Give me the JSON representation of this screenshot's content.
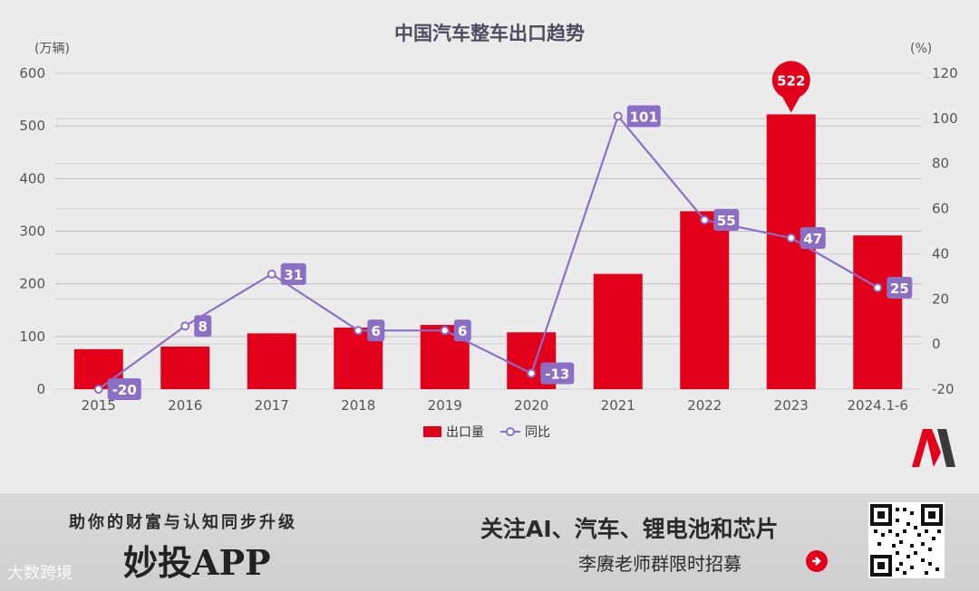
{
  "chart_data": {
    "type": "bar+line",
    "title": "中国汽车整车出口趋势",
    "left_unit": "(万辆)",
    "right_unit": "(%)",
    "categories": [
      "2015",
      "2016",
      "2017",
      "2018",
      "2019",
      "2020",
      "2021",
      "2022",
      "2023",
      "2024.1-6"
    ],
    "y_left": {
      "min": 0,
      "max": 600,
      "ticks": [
        "0",
        "100",
        "200",
        "300",
        "400",
        "500",
        "600"
      ]
    },
    "y_right": {
      "min": -20,
      "max": 120,
      "ticks": [
        "-20",
        "0",
        "20",
        "40",
        "60",
        "80",
        "100",
        "120"
      ]
    },
    "series": [
      {
        "name": "出口量",
        "type": "bar",
        "axis": "left",
        "color": "#e3001b",
        "values": [
          76,
          81,
          106,
          117,
          122,
          108,
          219,
          338,
          522,
          292
        ]
      },
      {
        "name": "同比",
        "type": "line",
        "axis": "right",
        "color": "#8b6fc4",
        "values": [
          -20,
          8,
          31,
          6,
          6,
          -13,
          101,
          55,
          47,
          25
        ],
        "labels": [
          "-20",
          "8",
          "31",
          "6",
          "6",
          "-13",
          "101",
          "55",
          "47",
          "25"
        ]
      }
    ],
    "highlight": {
      "index": 8,
      "label": "522"
    },
    "legend_position": "bottom-center",
    "grid": true
  },
  "banner": {
    "left_top": "助你的财富与认知同步升级",
    "brand": "妙投APP",
    "watermark": "大数跨境",
    "right_top": "关注AI、汽车、锂电池和芯片",
    "right_sub": "李赓老师群限时招募",
    "arrow_icon": "arrow-right-circle-icon",
    "qr_icon": "qr-code-icon"
  },
  "logo_icon": "m-logo-icon"
}
